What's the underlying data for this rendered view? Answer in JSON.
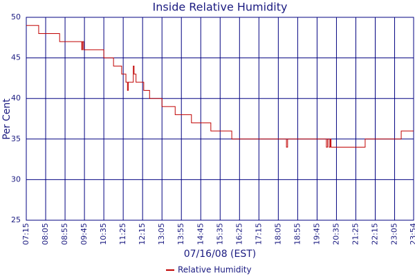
{
  "chart_data": {
    "type": "line",
    "title": "Inside Relative Humidity",
    "xlabel": "07/16/08 (EST)",
    "ylabel": "Per Cent",
    "x": [
      "07:15",
      "07:47",
      "08:41",
      "09:38",
      "09:40",
      "09:43",
      "10:35",
      "11:00",
      "11:21",
      "11:32",
      "11:36",
      "11:38",
      "11:51",
      "11:53",
      "11:58",
      "12:18",
      "12:33",
      "13:05",
      "13:39",
      "14:21",
      "15:11",
      "16:05",
      "18:26",
      "18:29",
      "20:09",
      "20:12",
      "20:16",
      "20:19",
      "20:21",
      "20:25",
      "21:49",
      "23:22",
      "23:54"
    ],
    "series": [
      {
        "name": "Relative Humidity",
        "color": "#c00000",
        "values": [
          49,
          48,
          47,
          46,
          47,
          46,
          45,
          44,
          43,
          42,
          41,
          42,
          44,
          43,
          42,
          41,
          40,
          39,
          38,
          37,
          36,
          35,
          34,
          35,
          34,
          35,
          34,
          35,
          34,
          34,
          35,
          36,
          36
        ]
      }
    ],
    "xlim": [
      "07:15",
      "23:54"
    ],
    "xticks": [
      "07:15",
      "08:05",
      "08:55",
      "09:45",
      "10:35",
      "11:25",
      "12:15",
      "13:05",
      "13:55",
      "14:45",
      "15:35",
      "16:25",
      "17:15",
      "18:05",
      "18:55",
      "19:45",
      "20:35",
      "21:25",
      "22:15",
      "23:05",
      "23:54"
    ],
    "ylim": [
      25,
      50
    ],
    "yticks": [
      25,
      30,
      35,
      40,
      45,
      50
    ],
    "grid": true,
    "step": true,
    "legend": "bottom"
  }
}
